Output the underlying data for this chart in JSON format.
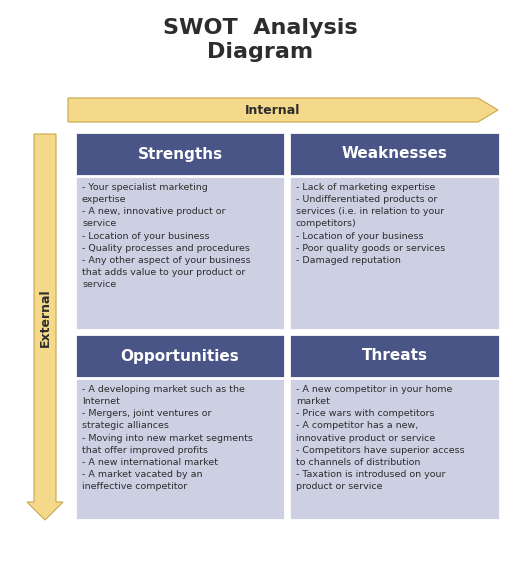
{
  "title_line1": "SWOT  Analysis",
  "title_line2": "Diagram",
  "title_color": "#2d2d2d",
  "title_fontsize": 16,
  "background_color": "#ffffff",
  "header_bg": "#4a5587",
  "cell_bg": "#cdd0e3",
  "arrow_color": "#f5d98b",
  "arrow_edge_color": "#c8a84b",
  "internal_label": "Internal",
  "external_label": "External",
  "quadrants": [
    {
      "title": "Strengths",
      "content": "- Your specialist marketing\nexpertise\n- A new, innovative product or\nservice\n- Location of your business\n- Quality processes and procedures\n- Any other aspect of your business\nthat adds value to your product or\nservice"
    },
    {
      "title": "Weaknesses",
      "content": "- Lack of marketing expertise\n- Undifferentiated products or\nservices (i.e. in relation to your\ncompetitors)\n- Location of your business\n- Poor quality goods or services\n- Damaged reputation"
    },
    {
      "title": "Opportunities",
      "content": "- A developing market such as the\nInternet\n- Mergers, joint ventures or\nstrategic alliances\n- Moving into new market segments\nthat offer improved profits\n- A new international market\n- A market vacated by an\nineffective competitor"
    },
    {
      "title": "Threats",
      "content": "- A new competitor in your home\nmarket\n- Price wars with competitors\n- A competitor has a new,\ninnovative product or service\n- Competitors have superior access\nto channels of distribution\n- Taxation is introdused on your\nproduct or service"
    }
  ]
}
